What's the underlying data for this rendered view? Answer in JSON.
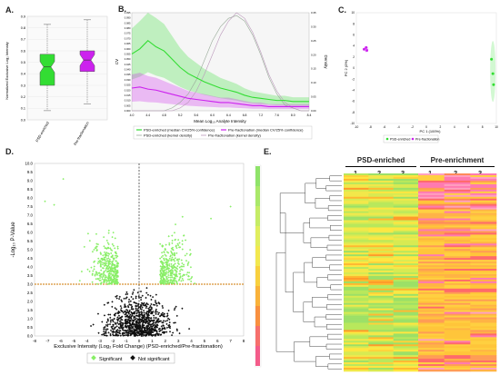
{
  "panels": {
    "a": "A.",
    "b": "B.",
    "c": "C.",
    "d": "D.",
    "e": "E."
  },
  "colors": {
    "psd": "#33dd33",
    "pre": "#cc22ee",
    "sig": "#88ee66",
    "nonsig": "#111111",
    "threshold": "#cc7700"
  },
  "chart_data": [
    {
      "type": "boxplot",
      "ylabel": "Normalized Exclusive Log₂ Intensity",
      "categories": [
        "PSD-enriched",
        "Pre-fractionation"
      ],
      "ylim": [
        0.0,
        0.9
      ],
      "yticks": [
        "0.0",
        "0.1",
        "0.2",
        "0.3",
        "0.4",
        "0.5",
        "0.6",
        "0.7",
        "0.8",
        "0.9"
      ],
      "boxes": [
        {
          "name": "PSD-enriched",
          "min": 0.08,
          "q1": 0.3,
          "median": 0.46,
          "q3": 0.57,
          "max": 0.83
        },
        {
          "name": "Pre-fractionation",
          "min": 0.14,
          "q1": 0.42,
          "median": 0.52,
          "q3": 0.6,
          "max": 0.87
        }
      ]
    },
    {
      "type": "line",
      "ylabel_left": "CV",
      "ylabel_right": "Density",
      "xlabel": "Mean Log₁₀ Analyte Intensity",
      "xticks": [
        "4.0",
        "4.4",
        "4.8",
        "5.2",
        "5.6",
        "6.0",
        "6.4",
        "6.8",
        "7.2",
        "7.6",
        "8.0",
        "8.4"
      ],
      "xlim": [
        4.0,
        8.4
      ],
      "yticks_left": [
        "0.000",
        "0.005",
        "0.010",
        "0.015",
        "0.020",
        "0.025",
        "0.030",
        "0.035",
        "0.040",
        "0.045",
        "0.050",
        "0.055",
        "0.060",
        "0.065",
        "0.070",
        "0.075",
        "0.080",
        "0.085",
        "0.090",
        "0.095"
      ],
      "ylim_left": [
        0.0,
        0.095
      ],
      "yticks_right": [
        "0.00",
        "0.05",
        "0.10",
        "0.15",
        "0.20",
        "0.25",
        "0.30",
        "0.35"
      ],
      "ylim_right": [
        0.0,
        0.35
      ],
      "x": [
        4.0,
        4.2,
        4.4,
        4.6,
        4.8,
        5.0,
        5.2,
        5.4,
        5.6,
        5.8,
        6.0,
        6.2,
        6.4,
        6.6,
        6.8,
        7.0,
        7.2,
        7.4,
        7.6,
        7.8,
        8.0,
        8.2,
        8.4
      ],
      "series": [
        {
          "name": "PSD-enriched (median CV/25% confidence)",
          "values": [
            0.055,
            0.06,
            0.068,
            0.062,
            0.058,
            0.05,
            0.042,
            0.036,
            0.032,
            0.028,
            0.025,
            0.022,
            0.02,
            0.018,
            0.015,
            0.013,
            0.012,
            0.011,
            0.01,
            0.01,
            0.009,
            0.009,
            0.009
          ]
        },
        {
          "name": "Pre-fractionation (median CV/25% confidence)",
          "values": [
            0.022,
            0.023,
            0.021,
            0.02,
            0.018,
            0.016,
            0.014,
            0.012,
            0.011,
            0.01,
            0.009,
            0.008,
            0.008,
            0.007,
            0.006,
            0.005,
            0.005,
            0.004,
            0.004,
            0.004,
            0.004,
            0.004,
            0.004
          ]
        },
        {
          "name": "PSD-enriched (kernel density)",
          "values": [
            0.0,
            0.0,
            0.0,
            0.0,
            0.0,
            0.01,
            0.03,
            0.06,
            0.11,
            0.18,
            0.25,
            0.3,
            0.33,
            0.34,
            0.32,
            0.27,
            0.2,
            0.12,
            0.06,
            0.02,
            0.01,
            0.0,
            0.0
          ]
        },
        {
          "name": "Pre-fractionation (kernel density)",
          "values": [
            0.0,
            0.0,
            0.0,
            0.0,
            0.0,
            0.0,
            0.01,
            0.03,
            0.07,
            0.13,
            0.2,
            0.27,
            0.32,
            0.35,
            0.33,
            0.28,
            0.21,
            0.13,
            0.07,
            0.03,
            0.01,
            0.0,
            0.0
          ]
        }
      ]
    },
    {
      "type": "scatter",
      "xlabel": "PC 1 (100%)",
      "ylabel": "PC 2 (0%)",
      "xticks": [
        "-10",
        "-8",
        "-6",
        "-4",
        "-2",
        "0",
        "2",
        "4",
        "6",
        "8",
        "10"
      ],
      "xlim": [
        -10,
        10
      ],
      "yticks": [
        "-10",
        "-8",
        "-6",
        "-4",
        "-2",
        "0",
        "2",
        "4",
        "6",
        "8",
        "10"
      ],
      "ylim": [
        -10,
        10
      ],
      "series": [
        {
          "name": "PSD-enriched",
          "points": [
            [
              9.3,
              1.6
            ],
            [
              9.5,
              -1.0
            ],
            [
              9.6,
              -3.0
            ]
          ]
        },
        {
          "name": "Pre-fractionation",
          "points": [
            [
              -8.6,
              3.7
            ],
            [
              -8.5,
              3.2
            ],
            [
              -8.9,
              3.4
            ]
          ]
        }
      ],
      "legend": [
        "PSD-enriched",
        "Pre-fractionation"
      ]
    },
    {
      "type": "scatter",
      "xlabel": "Exclusive Intensity (Log₂ Fold Change) (PSD-enriched/Pre-fractionation)",
      "ylabel": "-Log₁₀ P-Value",
      "xticks": [
        "-8",
        "-7",
        "-6",
        "-5",
        "-4",
        "-3",
        "-2",
        "-1",
        "0",
        "1",
        "2",
        "3",
        "4",
        "5",
        "6",
        "7",
        "8"
      ],
      "xlim": [
        -8,
        8
      ],
      "yticks": [
        "0.0",
        "0.5",
        "1.0",
        "1.5",
        "2.0",
        "2.5",
        "3.0",
        "3.5",
        "4.0",
        "4.5",
        "5.0",
        "5.5",
        "6.0",
        "6.5",
        "7.0",
        "7.5",
        "8.0",
        "8.5",
        "9.0",
        "9.5",
        "10.0"
      ],
      "ylim": [
        0,
        10
      ],
      "threshold_y": 3.0,
      "legend": [
        "Significant",
        "Not significant"
      ]
    },
    {
      "type": "heatmap",
      "groups": [
        {
          "name": "PSD-enriched",
          "columns": [
            "1",
            "2",
            "3"
          ]
        },
        {
          "name": "Pre-enrichment",
          "columns": [
            "1",
            "2",
            "3"
          ]
        }
      ]
    }
  ]
}
